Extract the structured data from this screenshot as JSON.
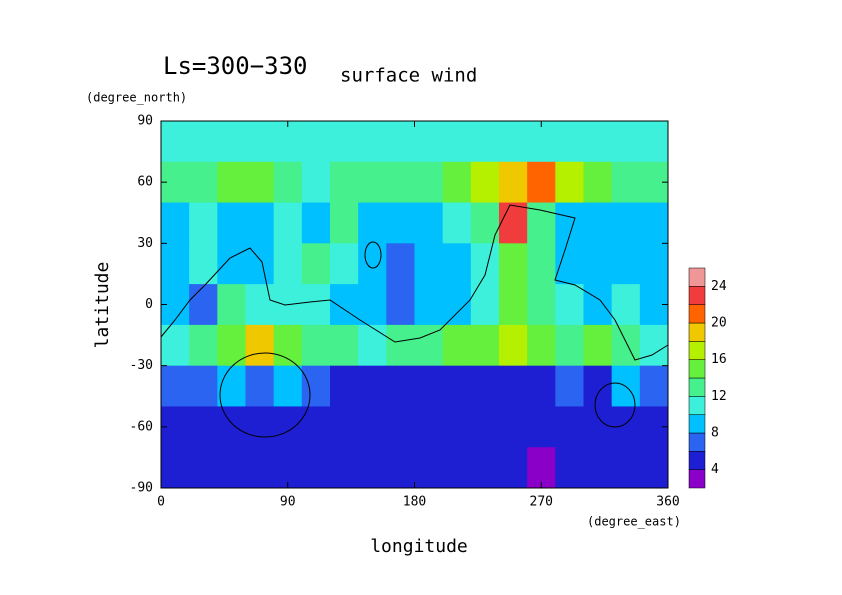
{
  "chart_data": {
    "type": "contourf",
    "title": "Ls=300−330",
    "subtitle": "surface wind",
    "xlabel": "longitude",
    "ylabel": "latitude",
    "xunit": "(degree_east)",
    "yunit": "(degree_north)",
    "xlim": [
      0,
      360
    ],
    "ylim": [
      -90,
      90
    ],
    "xticks": [
      0,
      90,
      180,
      270,
      360
    ],
    "yticks": [
      -90,
      -60,
      -30,
      0,
      30,
      60,
      90
    ],
    "lon": [
      10,
      30,
      50,
      70,
      90,
      110,
      130,
      150,
      170,
      190,
      210,
      230,
      250,
      270,
      290,
      310,
      330,
      350
    ],
    "lat": [
      80,
      60,
      40,
      20,
      0,
      -20,
      -40,
      -60,
      -80
    ],
    "z": [
      [
        11,
        11,
        11,
        11,
        11,
        11,
        11,
        11,
        11,
        11,
        11,
        11,
        11,
        11,
        11,
        11,
        11,
        11
      ],
      [
        13,
        13,
        15,
        15,
        13,
        11,
        13,
        13,
        13,
        13,
        15,
        17,
        19,
        21,
        17,
        15,
        13,
        13
      ],
      [
        9,
        11,
        9,
        9,
        11,
        9,
        13,
        9,
        9,
        9,
        11,
        13,
        23,
        13,
        9,
        9,
        9,
        9
      ],
      [
        9,
        11,
        9,
        9,
        11,
        13,
        11,
        9,
        7,
        9,
        9,
        11,
        15,
        13,
        9,
        9,
        9,
        9
      ],
      [
        9,
        7,
        13,
        11,
        11,
        11,
        9,
        9,
        7,
        9,
        9,
        11,
        15,
        13,
        11,
        9,
        11,
        9
      ],
      [
        11,
        13,
        15,
        19,
        15,
        13,
        13,
        11,
        13,
        13,
        15,
        15,
        17,
        15,
        13,
        15,
        13,
        11
      ],
      [
        7,
        7,
        9,
        7,
        9,
        7,
        5,
        5,
        5,
        5,
        5,
        5,
        5,
        5,
        7,
        5,
        9,
        7
      ],
      [
        5,
        5,
        5,
        5,
        5,
        5,
        5,
        5,
        5,
        5,
        5,
        5,
        5,
        5,
        5,
        5,
        5,
        5
      ],
      [
        5,
        5,
        5,
        5,
        5,
        5,
        5,
        5,
        5,
        5,
        5,
        5,
        5,
        3,
        5,
        5,
        5,
        5
      ]
    ],
    "levels": [
      2,
      4,
      6,
      8,
      10,
      12,
      14,
      16,
      18,
      20,
      22,
      24,
      26
    ],
    "colors": [
      "#8a00c8",
      "#1e1ed2",
      "#2a64f0",
      "#00c0ff",
      "#3cf0dc",
      "#46f08c",
      "#64f03c",
      "#b4f000",
      "#f0c800",
      "#ff6400",
      "#f03c3c",
      "#f09696"
    ],
    "colorbar_ticks": [
      4,
      8,
      12,
      16,
      20,
      24
    ]
  }
}
